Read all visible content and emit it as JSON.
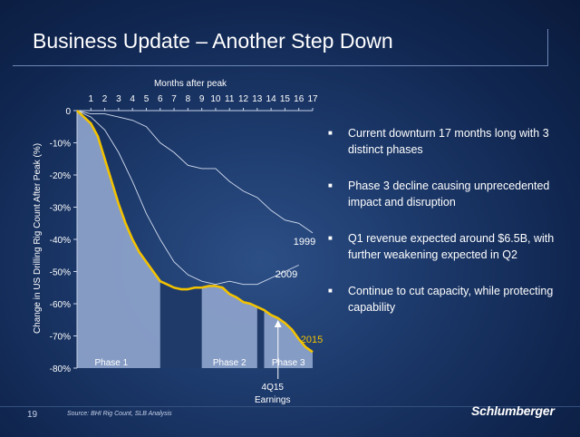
{
  "slide": {
    "title": "Business Update – Another Step Down",
    "page_number": "19",
    "source": "Source: BHI Rig Count, SLB Analysis",
    "logo_text": "Schlumberger"
  },
  "bullets": [
    "Current downturn 17 months long with 3 distinct phases",
    "Phase 3 decline causing unprecedented impact and disruption",
    "Q1 revenue expected around $6.5B, with further weakening expected in Q2",
    "Continue to cut capacity, while protecting capability"
  ],
  "colors": {
    "accent": "#f2c200",
    "fill": "#8ea4cc",
    "dark_band": "#1f3a69"
  },
  "chart_data": {
    "type": "area",
    "xlabel": "Months after peak",
    "ylabel": "Change in US Drilling Rig Count After Peak (%)",
    "x_ticks": [
      "1",
      "2",
      "3",
      "4",
      "5",
      "6",
      "7",
      "8",
      "9",
      "10",
      "11",
      "12",
      "13",
      "14",
      "15",
      "16",
      "17"
    ],
    "y_ticks": [
      "0",
      "-10%",
      "-20%",
      "-30%",
      "-40%",
      "-50%",
      "-60%",
      "-70%",
      "-80%"
    ],
    "xlim": [
      0,
      17
    ],
    "ylim": [
      -80,
      0
    ],
    "series": [
      {
        "name": "2015",
        "x": [
          0,
          0.5,
          1,
          1.5,
          2,
          2.5,
          3,
          3.5,
          4,
          4.5,
          5,
          5.5,
          6,
          6.5,
          7,
          7.5,
          8,
          8.5,
          9,
          9.5,
          10,
          10.5,
          11,
          11.5,
          12,
          12.5,
          13,
          13.5,
          14,
          14.5,
          15,
          15.5,
          16,
          16.5,
          17
        ],
        "values": [
          0,
          -2,
          -4,
          -8,
          -15,
          -22,
          -29,
          -35,
          -40,
          -44,
          -47,
          -50,
          -53,
          -54,
          -55,
          -55.5,
          -55.5,
          -55,
          -55,
          -54.5,
          -54.5,
          -55,
          -57,
          -58,
          -59.5,
          -60,
          -61,
          -62,
          -63.5,
          -64.5,
          -66,
          -68,
          -71,
          -73.5,
          -75
        ]
      },
      {
        "name": "2009",
        "x": [
          0,
          1,
          2,
          3,
          4,
          5,
          6,
          7,
          8,
          9,
          10,
          11,
          12,
          13,
          14,
          15,
          16
        ],
        "values": [
          0,
          -2,
          -6,
          -13,
          -22,
          -32,
          -40,
          -47,
          -51,
          -53,
          -54,
          -53,
          -54,
          -54,
          -52,
          -50,
          -48
        ]
      },
      {
        "name": "1999",
        "x": [
          0,
          1,
          2,
          3,
          4,
          5,
          6,
          7,
          8,
          9,
          10,
          11,
          12,
          13,
          14,
          15,
          16,
          17
        ],
        "values": [
          0,
          -1,
          -1,
          -2,
          -3,
          -5,
          -10,
          -13,
          -17,
          -18,
          -18,
          -22,
          -25,
          -27,
          -31,
          -34,
          -35,
          -38
        ]
      }
    ],
    "phases": [
      {
        "label": "Phase 1",
        "from": 0,
        "to": 6
      },
      {
        "label": "Phase 2",
        "from": 9,
        "to": 13
      },
      {
        "label": "Phase 3",
        "from": 13.5,
        "to": 17
      }
    ],
    "annotation": {
      "text_line1": "4Q15",
      "text_line2": "Earnings",
      "x": 14.5
    }
  }
}
